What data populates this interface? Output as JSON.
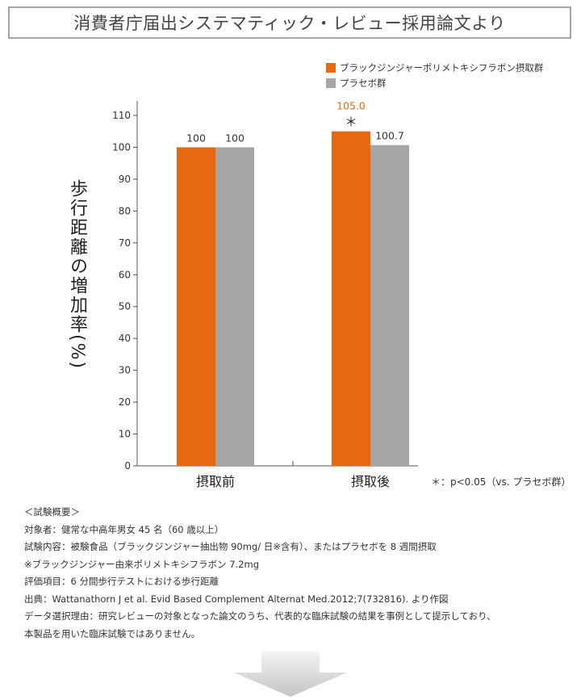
{
  "header": {
    "title": "消費者庁届出システマティック・レビュー採用論文より"
  },
  "legend": {
    "items": [
      {
        "label": "ブラックジンジャーポリメトキシフラボン摂取群",
        "color": "#e8680f"
      },
      {
        "label": "プラセボ群",
        "color": "#a6a6a6"
      }
    ]
  },
  "chart_data": {
    "type": "bar",
    "ylabel": "歩行距離の増加率(%)",
    "categories": [
      "摂取前",
      "摂取後"
    ],
    "series": [
      {
        "name": "ブラックジンジャーポリメトキシフラボン摂取群",
        "values": [
          100,
          105.0
        ],
        "value_labels": [
          "100",
          "105.0"
        ],
        "color": "#e8680f"
      },
      {
        "name": "プラセボ群",
        "values": [
          100,
          100.7
        ],
        "value_labels": [
          "100",
          "100.7"
        ],
        "color": "#a6a6a6"
      }
    ],
    "ylim": [
      0,
      110
    ],
    "yticks": [
      0,
      10,
      20,
      30,
      40,
      50,
      60,
      70,
      80,
      90,
      100,
      110
    ],
    "grid": false,
    "legend_position": "top-right",
    "annotations": [
      {
        "text": "＊",
        "category": "摂取後",
        "series": 0
      }
    ]
  },
  "significance_note": "＊：p<0.05（vs. プラセボ群）",
  "notes": [
    "＜試験概要＞",
    "対象者：健常な中高年男女 45 名（60 歳以上）",
    "試験内容：被験食品（ブラックジンジャー抽出物 90mg/ 日※含有）、またはプラセボを 8 週間摂取",
    "※ブラックジンジャー由来ポリメトキシフラボン 7.2mg",
    "評価項目：6 分間歩行テストにおける歩行距離",
    "出典：Wattanathorn J et al. Evid Based Complement Alternat Med.2012;7(732816). より作図",
    "データ選択理由：研究レビューの対象となった論文のうち、代表的な臨床試験の結果を事例として提示しており、",
    "本製品を用いた臨床試験ではありません。"
  ]
}
